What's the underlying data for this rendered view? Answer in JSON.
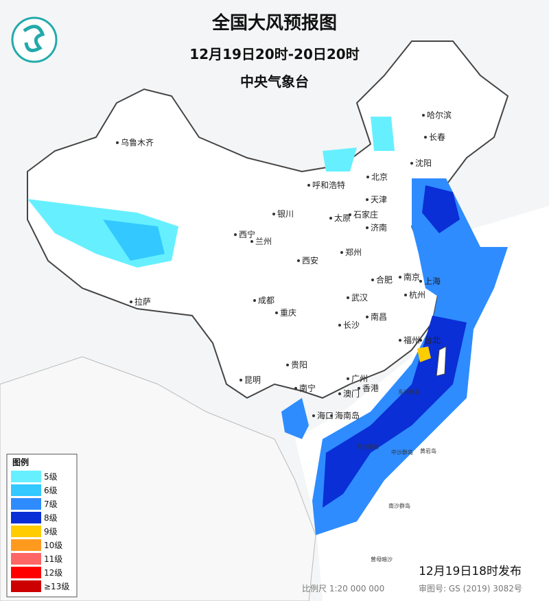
{
  "header": {
    "title": "全国大风预报图",
    "period": "12月19日20时-20日20时",
    "issuer": "中央气象台"
  },
  "legend": {
    "title": "图例",
    "items": [
      {
        "label": "5级",
        "color": "#66f0ff"
      },
      {
        "label": "6级",
        "color": "#33c8ff"
      },
      {
        "label": "7级",
        "color": "#2e8cff"
      },
      {
        "label": "8级",
        "color": "#0a2fd6"
      },
      {
        "label": "9级",
        "color": "#ffcc00"
      },
      {
        "label": "10级",
        "color": "#ff9a1f"
      },
      {
        "label": "11级",
        "color": "#ff6666"
      },
      {
        "label": "12级",
        "color": "#ff0000"
      },
      {
        "label": "≥13级",
        "color": "#cc0000"
      }
    ]
  },
  "cities": [
    "乌鲁木齐",
    "哈尔滨",
    "长春",
    "沈阳",
    "呼和浩特",
    "北京",
    "天津",
    "石家庄",
    "太原",
    "济南",
    "银川",
    "西宁",
    "兰州",
    "郑州",
    "西安",
    "南京",
    "合肥",
    "上海",
    "杭州",
    "武汉",
    "成都",
    "拉萨",
    "南昌",
    "长沙",
    "重庆",
    "福州",
    "台北",
    "贵阳",
    "昆明",
    "南宁",
    "广州",
    "香港",
    "澳门",
    "海口",
    "海南岛"
  ],
  "islands": [
    "东沙群岛",
    "西沙群岛",
    "中沙群岛",
    "黄岩岛",
    "南沙群岛",
    "曾母暗沙"
  ],
  "footer": {
    "issued": "12月19日18时发布",
    "scale": "比例尺 1:20 000 000",
    "approval": "审图号: GS (2019) 3082号"
  }
}
